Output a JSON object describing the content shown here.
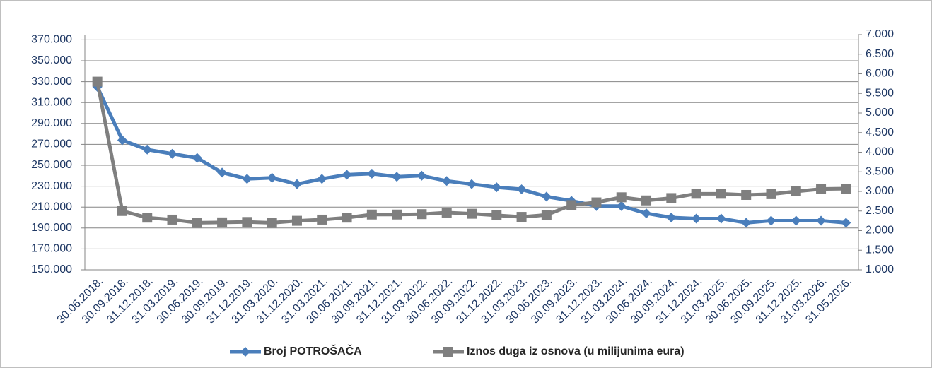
{
  "chart_data": {
    "type": "line",
    "categories": [
      "30.06.2018.",
      "30.09.2018.",
      "31.12.2018.",
      "31.03.2019.",
      "30.06.2019.",
      "30.09.2019.",
      "31.12.2019.",
      "31.03.2020.",
      "31.12.2020.",
      "31.03.2021.",
      "30.06.2021.",
      "30.09.2021.",
      "31.12.2021.",
      "31.03.2022.",
      "30.06.2022.",
      "30.09.2022.",
      "31.12.2022.",
      "31.03.2023.",
      "30.06.2023.",
      "30.09.2023.",
      "31.12.2023.",
      "31.03.2024.",
      "30.06.2024.",
      "30.09.2024.",
      "31.12.2024.",
      "31.03.2025.",
      "30.06.2025.",
      "30.09.2025.",
      "31.12.2025.",
      "31.03.2026.",
      "31.05.2026."
    ],
    "series": [
      {
        "name": "Broj POTROŠAČA",
        "color": "#4a7ebb",
        "marker": "diamond",
        "values": [
          325000,
          274000,
          265000,
          261000,
          257000,
          243000,
          237000,
          238000,
          232000,
          237000,
          241000,
          242000,
          239000,
          240000,
          235000,
          232000,
          229000,
          227000,
          220000,
          216000,
          211000,
          211000,
          204000,
          200000,
          199000,
          199000,
          195000,
          197000,
          197000,
          197000,
          195000
        ]
      },
      {
        "name": "Iznos duga iz osnova (u milijunima eura)",
        "color": "#7f7f7f",
        "marker": "square",
        "axis": "y2",
        "values": [
          5.8,
          2.5,
          2.33,
          2.28,
          2.2,
          2.21,
          2.22,
          2.2,
          2.25,
          2.28,
          2.33,
          2.41,
          2.41,
          2.42,
          2.46,
          2.43,
          2.39,
          2.35,
          2.4,
          2.65,
          2.72,
          2.85,
          2.77,
          2.83,
          2.94,
          2.94,
          2.91,
          2.93,
          3.0,
          3.06,
          3.07
        ]
      }
    ],
    "ylim": [
      150000,
      375000
    ],
    "yticks": [
      {
        "value": 150000,
        "label": "150.000"
      },
      {
        "value": 170000,
        "label": "170.000"
      },
      {
        "value": 190000,
        "label": "190.000"
      },
      {
        "value": 210000,
        "label": "210.000"
      },
      {
        "value": 230000,
        "label": "230.000"
      },
      {
        "value": 250000,
        "label": "250.000"
      },
      {
        "value": 270000,
        "label": "270.000"
      },
      {
        "value": 290000,
        "label": "290.000"
      },
      {
        "value": 310000,
        "label": "310.000"
      },
      {
        "value": 330000,
        "label": "330.000"
      },
      {
        "value": 350000,
        "label": "350.000"
      },
      {
        "value": 370000,
        "label": "370.000"
      }
    ],
    "y2lim": [
      1,
      7
    ],
    "y2ticks": [
      {
        "value": 1,
        "label": "1.000"
      },
      {
        "value": 1.5,
        "label": "1.500"
      },
      {
        "value": 2,
        "label": "2.000"
      },
      {
        "value": 2.5,
        "label": "2.500"
      },
      {
        "value": 3,
        "label": "3.000"
      },
      {
        "value": 3.5,
        "label": "3.500"
      },
      {
        "value": 4,
        "label": "4.000"
      },
      {
        "value": 4.5,
        "label": "4.500"
      },
      {
        "value": 5,
        "label": "5.000"
      },
      {
        "value": 5.5,
        "label": "5.500"
      },
      {
        "value": 6,
        "label": "6.000"
      },
      {
        "value": 6.5,
        "label": "6.500"
      },
      {
        "value": 7,
        "label": "7.000"
      }
    ],
    "grid": true,
    "legend": "bottom"
  }
}
